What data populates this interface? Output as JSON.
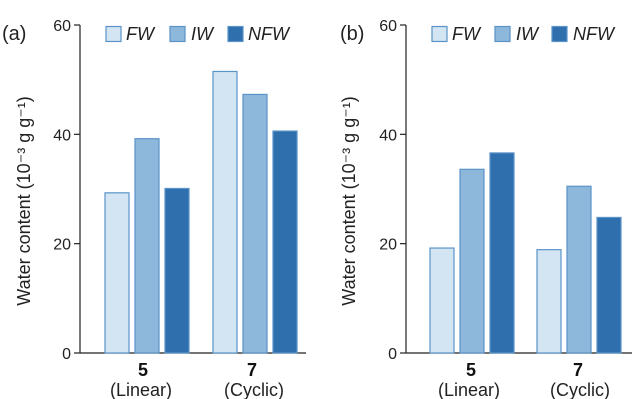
{
  "chart_data": [
    {
      "type": "bar",
      "panel_label": "(a)",
      "ylabel": "Water content (10⁻³ g g⁻¹)",
      "ylim": [
        0,
        60
      ],
      "yticks": [
        "0",
        "20",
        "40",
        "60"
      ],
      "yticks_values": [
        0,
        20,
        40,
        60
      ],
      "categories": [
        "5",
        "7"
      ],
      "category_sublabels": [
        "(Linear)",
        "(Cyclic)"
      ],
      "legend_position": "top",
      "grid": false,
      "series": [
        {
          "name": "FW",
          "color": "#d3e5f3",
          "values": [
            29.3,
            51.5
          ]
        },
        {
          "name": "IW",
          "color": "#8eb7dc",
          "values": [
            39.2,
            47.3
          ]
        },
        {
          "name": "NFW",
          "color": "#2f6fae",
          "values": [
            30.1,
            40.6
          ]
        }
      ]
    },
    {
      "type": "bar",
      "panel_label": "(b)",
      "ylabel": "Water content (10⁻³ g g⁻¹)",
      "ylim": [
        0,
        60
      ],
      "yticks": [
        "0",
        "20",
        "40",
        "60"
      ],
      "yticks_values": [
        0,
        20,
        40,
        60
      ],
      "categories": [
        "5",
        "7"
      ],
      "category_sublabels": [
        "(Linear)",
        "(Cyclic)"
      ],
      "legend_position": "top",
      "grid": false,
      "series": [
        {
          "name": "FW",
          "color": "#d3e5f3",
          "values": [
            19.2,
            18.9
          ]
        },
        {
          "name": "IW",
          "color": "#8eb7dc",
          "values": [
            33.6,
            30.5
          ]
        },
        {
          "name": "NFW",
          "color": "#2f6fae",
          "values": [
            36.6,
            24.8
          ]
        }
      ]
    }
  ]
}
